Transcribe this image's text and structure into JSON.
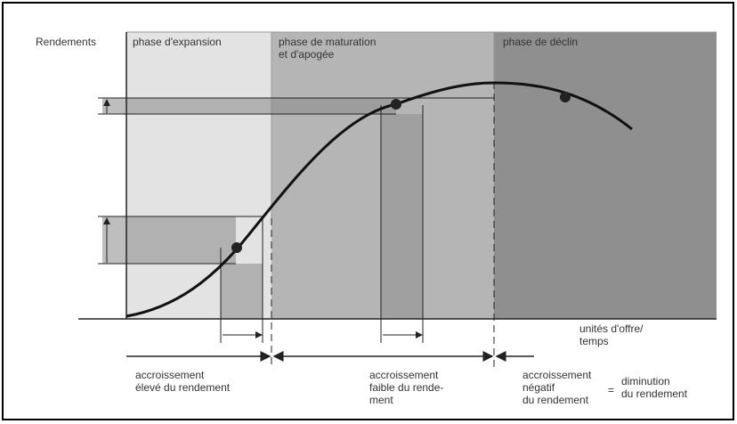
{
  "diagram": {
    "y_axis_label": "Rendements",
    "phases": [
      {
        "lines": [
          "phase d'expansion"
        ]
      },
      {
        "lines": [
          "phase de maturation",
          "et d'apogée"
        ]
      },
      {
        "lines": [
          "phase de déclin"
        ]
      }
    ],
    "x_axis_label": [
      "unités d'offre/",
      "temps"
    ],
    "notes": [
      {
        "lines": [
          "accroissement",
          "élevé du rendement"
        ]
      },
      {
        "lines": [
          "accroissement",
          "faible du rende-",
          "ment"
        ]
      },
      {
        "lines": [
          "accroissement",
          "négatif",
          "du rendement"
        ]
      }
    ],
    "equals": "=",
    "result": [
      "diminution",
      "du rendement"
    ]
  }
}
